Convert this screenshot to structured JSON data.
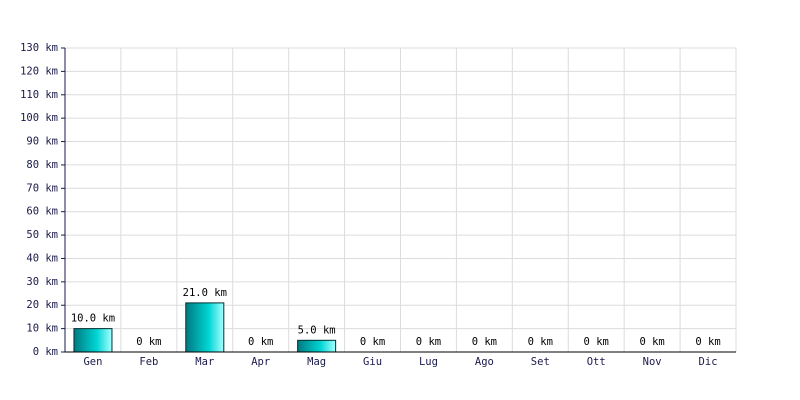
{
  "chart_data": {
    "type": "bar",
    "categories": [
      "Gen",
      "Feb",
      "Mar",
      "Apr",
      "Mag",
      "Giu",
      "Lug",
      "Ago",
      "Set",
      "Ott",
      "Nov",
      "Dic"
    ],
    "values": [
      10,
      0,
      21,
      0,
      5,
      0,
      0,
      0,
      0,
      0,
      0,
      0
    ],
    "value_labels": [
      "10.0 km",
      "0 km",
      "21.0 km",
      "0 km",
      "5.0 km",
      "0 km",
      "0 km",
      "0 km",
      "0 km",
      "0 km",
      "0 km",
      "0 km"
    ],
    "color": "#00d4d4",
    "ylim": [
      0,
      130
    ],
    "yticks": [
      {
        "value": 0,
        "label": "0 km"
      },
      {
        "value": 10,
        "label": "10 km"
      },
      {
        "value": 20,
        "label": "20 km"
      },
      {
        "value": 30,
        "label": "30 km"
      },
      {
        "value": 40,
        "label": "40 km"
      },
      {
        "value": 50,
        "label": "50 km"
      },
      {
        "value": 60,
        "label": "60 km"
      },
      {
        "value": 70,
        "label": "70 km"
      },
      {
        "value": 80,
        "label": "80 km"
      },
      {
        "value": 90,
        "label": "90 km"
      },
      {
        "value": 100,
        "label": "100 km"
      },
      {
        "value": 110,
        "label": "110 km"
      },
      {
        "value": 120,
        "label": "120 km"
      },
      {
        "value": 130,
        "label": "130 km"
      }
    ],
    "grid": true
  }
}
